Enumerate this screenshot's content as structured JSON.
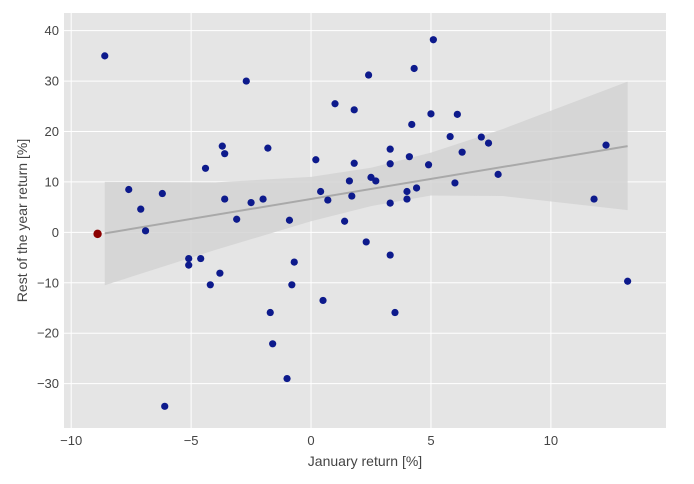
{
  "chart_data": {
    "type": "scatter",
    "title": "",
    "xlabel": "January return [%]",
    "ylabel": "Rest of the year return [%]",
    "xlim": [
      -10.3,
      14.8
    ],
    "ylim": [
      -38.8,
      43.5
    ],
    "xticks": [
      -10,
      -5,
      0,
      5,
      10
    ],
    "yticks": [
      -30,
      -20,
      -10,
      0,
      10,
      20,
      30,
      40
    ],
    "xtick_labels": [
      "−10",
      "−5",
      "0",
      "5",
      "10"
    ],
    "ytick_labels": [
      "−30",
      "−20",
      "−10",
      "0",
      "10",
      "20",
      "30",
      "40"
    ],
    "grid": true,
    "legend": "none",
    "colors": {
      "plot_background": "#e5e5e5",
      "grid": "#ffffff",
      "points": "#0d1a8c",
      "highlight_point": "#8b0000",
      "trend_line": "#a9a9a9",
      "confidence_band": "#d3d3d3"
    },
    "points": [
      {
        "x": -8.6,
        "y": 35.0
      },
      {
        "x": -7.6,
        "y": 8.5
      },
      {
        "x": -7.1,
        "y": 4.6
      },
      {
        "x": -6.9,
        "y": 0.3
      },
      {
        "x": -6.2,
        "y": 7.7
      },
      {
        "x": -6.1,
        "y": -34.5
      },
      {
        "x": -5.1,
        "y": -5.2
      },
      {
        "x": -5.1,
        "y": -6.5
      },
      {
        "x": -4.6,
        "y": -5.2
      },
      {
        "x": -4.4,
        "y": 12.7
      },
      {
        "x": -4.2,
        "y": -10.4
      },
      {
        "x": -3.8,
        "y": -8.1
      },
      {
        "x": -3.7,
        "y": 17.1
      },
      {
        "x": -3.6,
        "y": 15.6
      },
      {
        "x": -3.6,
        "y": 6.6
      },
      {
        "x": -3.1,
        "y": 2.6
      },
      {
        "x": -2.7,
        "y": 30.0
      },
      {
        "x": -2.5,
        "y": 5.9
      },
      {
        "x": -2.0,
        "y": 6.6
      },
      {
        "x": -1.8,
        "y": 16.7
      },
      {
        "x": -1.7,
        "y": -15.9
      },
      {
        "x": -1.6,
        "y": -22.1
      },
      {
        "x": -1.0,
        "y": -29.0
      },
      {
        "x": -0.9,
        "y": 2.4
      },
      {
        "x": -0.8,
        "y": -10.4
      },
      {
        "x": -0.7,
        "y": -5.9
      },
      {
        "x": 0.2,
        "y": 14.4
      },
      {
        "x": 0.4,
        "y": 8.1
      },
      {
        "x": 0.5,
        "y": -13.5
      },
      {
        "x": 0.7,
        "y": 6.4
      },
      {
        "x": 1.0,
        "y": 25.5
      },
      {
        "x": 1.4,
        "y": 2.2
      },
      {
        "x": 1.6,
        "y": 10.2
      },
      {
        "x": 1.7,
        "y": 7.2
      },
      {
        "x": 1.8,
        "y": 13.7
      },
      {
        "x": 1.8,
        "y": 24.3
      },
      {
        "x": 2.3,
        "y": -1.9
      },
      {
        "x": 2.4,
        "y": 31.2
      },
      {
        "x": 2.5,
        "y": 10.9
      },
      {
        "x": 2.7,
        "y": 10.2
      },
      {
        "x": 3.3,
        "y": 16.5
      },
      {
        "x": 3.3,
        "y": 13.6
      },
      {
        "x": 3.3,
        "y": 5.8
      },
      {
        "x": 3.3,
        "y": -4.5
      },
      {
        "x": 3.5,
        "y": -15.9
      },
      {
        "x": 4.0,
        "y": 8.1
      },
      {
        "x": 4.0,
        "y": 6.6
      },
      {
        "x": 4.1,
        "y": 15.0
      },
      {
        "x": 4.2,
        "y": 21.4
      },
      {
        "x": 4.3,
        "y": 32.5
      },
      {
        "x": 4.4,
        "y": 8.8
      },
      {
        "x": 4.9,
        "y": 13.4
      },
      {
        "x": 5.0,
        "y": 23.5
      },
      {
        "x": 5.1,
        "y": 38.2
      },
      {
        "x": 5.8,
        "y": 19.0
      },
      {
        "x": 6.0,
        "y": 9.8
      },
      {
        "x": 6.1,
        "y": 23.4
      },
      {
        "x": 6.3,
        "y": 15.9
      },
      {
        "x": 7.1,
        "y": 18.9
      },
      {
        "x": 7.4,
        "y": 17.7
      },
      {
        "x": 7.8,
        "y": 11.5
      },
      {
        "x": 11.8,
        "y": 6.6
      },
      {
        "x": 12.3,
        "y": 17.3
      },
      {
        "x": 13.2,
        "y": -9.7
      }
    ],
    "highlight_points": [
      {
        "x": -8.9,
        "y": -0.3
      }
    ],
    "trend_line": {
      "x": [
        -8.6,
        13.2
      ],
      "y": [
        -0.2,
        17.1
      ]
    },
    "confidence_band": {
      "x": [
        -8.6,
        -4.0,
        0.0,
        2.5,
        5.0,
        8.0,
        13.2
      ],
      "lower": [
        -10.5,
        -3.5,
        2.2,
        5.2,
        7.3,
        7.2,
        4.4
      ],
      "upper": [
        10.0,
        9.9,
        11.0,
        12.8,
        15.8,
        20.5,
        29.9
      ]
    }
  }
}
